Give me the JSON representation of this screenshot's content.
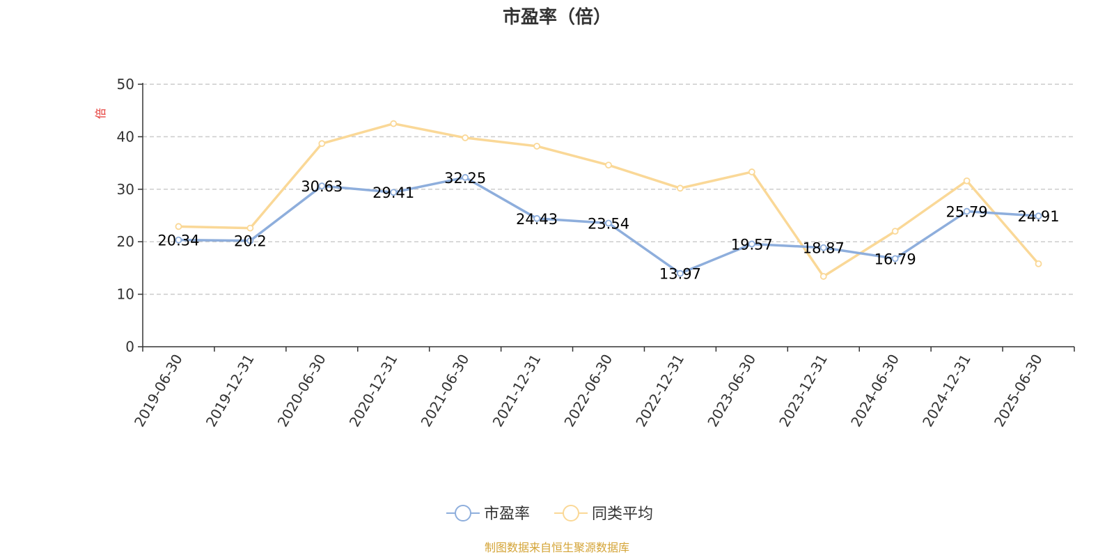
{
  "chart_data": {
    "type": "line",
    "title": "市盈率（倍）",
    "ylabel": "倍",
    "ylim": [
      0,
      50
    ],
    "yticks": [
      0,
      10,
      20,
      30,
      40,
      50
    ],
    "grid": "horizontal dashed",
    "legend_position": "bottom",
    "categories": [
      "2019-06-30",
      "2019-12-31",
      "2020-06-30",
      "2020-12-31",
      "2021-06-30",
      "2021-12-31",
      "2022-06-30",
      "2022-12-31",
      "2023-06-30",
      "2023-12-31",
      "2024-06-30",
      "2024-12-31",
      "2025-06-30"
    ],
    "series": [
      {
        "name": "市盈率",
        "color": "#8eaedc",
        "values": [
          20.34,
          20.2,
          30.63,
          29.41,
          32.25,
          24.43,
          23.54,
          13.97,
          19.57,
          18.87,
          16.79,
          25.79,
          24.91
        ],
        "labels": [
          "20.34",
          "20.2",
          "30.63",
          "29.41",
          "32.25",
          "24.43",
          "23.54",
          "13.97",
          "19.57",
          "18.87",
          "16.79",
          "25.79",
          "24.91"
        ]
      },
      {
        "name": "同类平均",
        "color": "#fad897",
        "values": [
          22.9,
          22.6,
          38.7,
          42.5,
          39.8,
          38.2,
          34.6,
          30.2,
          33.3,
          13.4,
          22.0,
          31.6,
          15.8
        ]
      }
    ],
    "source": "制图数据来自恒生聚源数据库"
  },
  "colors": {
    "axis": "#333333",
    "grid": "#cccccc",
    "ylabel": "#e53935",
    "source": "#d4a437"
  }
}
